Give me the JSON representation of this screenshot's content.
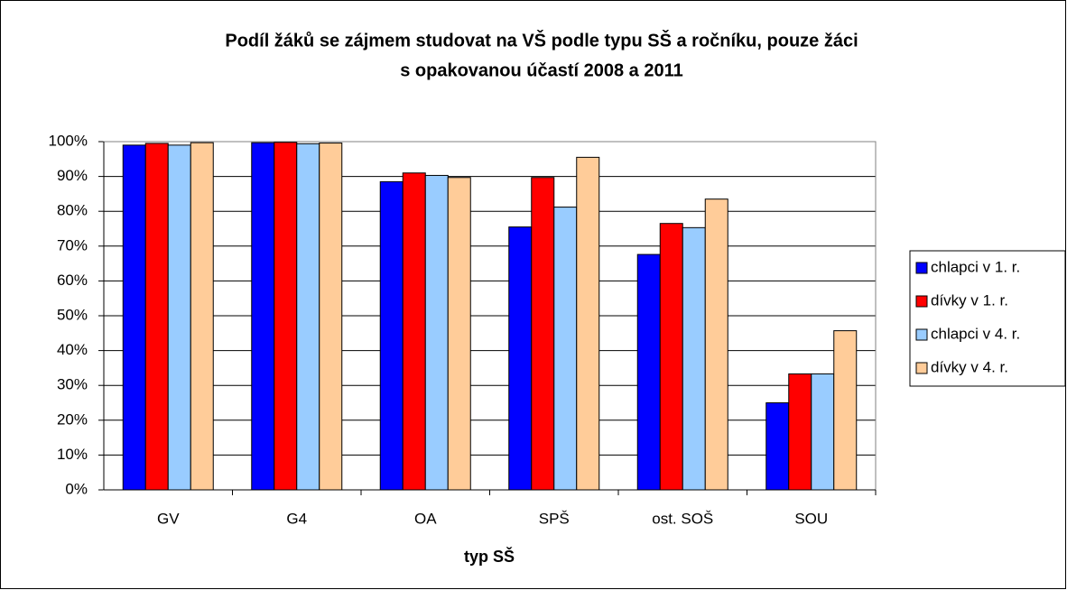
{
  "chart_data": {
    "type": "bar",
    "title": "Podíl žáků se zájmem studovat na VŠ podle typu SŠ a ročníku, pouze žáci",
    "subtitle": "s opakovanou účastí 2008 a 2011",
    "x_label": "typ SŠ",
    "categories": [
      "GV",
      "G4",
      "OA",
      "SPŠ",
      "ost. SOŠ",
      "SOU"
    ],
    "series": [
      {
        "name": "chlapci v 1. r.",
        "color": "#0000ff",
        "values": [
          99,
          99.7,
          88.5,
          75.5,
          67.6,
          25
        ]
      },
      {
        "name": "dívky v 1. r.",
        "color": "#ff0000",
        "values": [
          99.5,
          99.8,
          91,
          89.7,
          76.5,
          33.3
        ]
      },
      {
        "name": "chlapci v 4. r.",
        "color": "#99ccff",
        "values": [
          99,
          99.4,
          90.3,
          81.2,
          75.3,
          33.3
        ]
      },
      {
        "name": "dívky v 4. r.",
        "color": "#ffcc99",
        "values": [
          99.7,
          99.6,
          89.7,
          95.5,
          83.5,
          45.7
        ]
      }
    ],
    "ylim": [
      0,
      100
    ],
    "yticks": [
      {
        "value": 0,
        "label": "0%"
      },
      {
        "value": 10,
        "label": "10%"
      },
      {
        "value": 20,
        "label": "20%"
      },
      {
        "value": 30,
        "label": "30%"
      },
      {
        "value": 40,
        "label": "40%"
      },
      {
        "value": 50,
        "label": "50%"
      },
      {
        "value": 60,
        "label": "60%"
      },
      {
        "value": 70,
        "label": "70%"
      },
      {
        "value": 80,
        "label": "80%"
      },
      {
        "value": 90,
        "label": "90%"
      },
      {
        "value": 100,
        "label": "100%"
      }
    ],
    "grid": true,
    "legend": "right"
  }
}
